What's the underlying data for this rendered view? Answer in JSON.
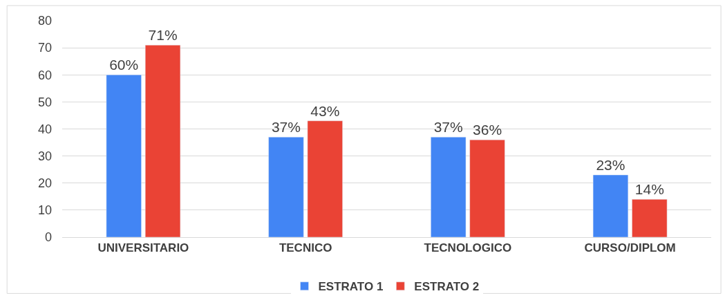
{
  "chart_data": {
    "type": "bar",
    "categories": [
      "UNIVERSITARIO",
      "TECNICO",
      "TECNOLOGICO",
      "CURSO/DIPLOM"
    ],
    "series": [
      {
        "name": "ESTRATO 1",
        "color": "#4285f4",
        "values": [
          60,
          37,
          37,
          23
        ],
        "value_labels": [
          "60%",
          "37%",
          "37%",
          "23%"
        ]
      },
      {
        "name": "ESTRATO 2",
        "color": "#ea4335",
        "values": [
          71,
          43,
          36,
          14
        ],
        "value_labels": [
          "71%",
          "43%",
          "36%",
          "14%"
        ]
      }
    ],
    "ylim": [
      0,
      80
    ],
    "yticks": [
      0,
      10,
      20,
      30,
      40,
      50,
      60,
      70,
      80
    ],
    "grid": "y",
    "legend": "bottom"
  }
}
